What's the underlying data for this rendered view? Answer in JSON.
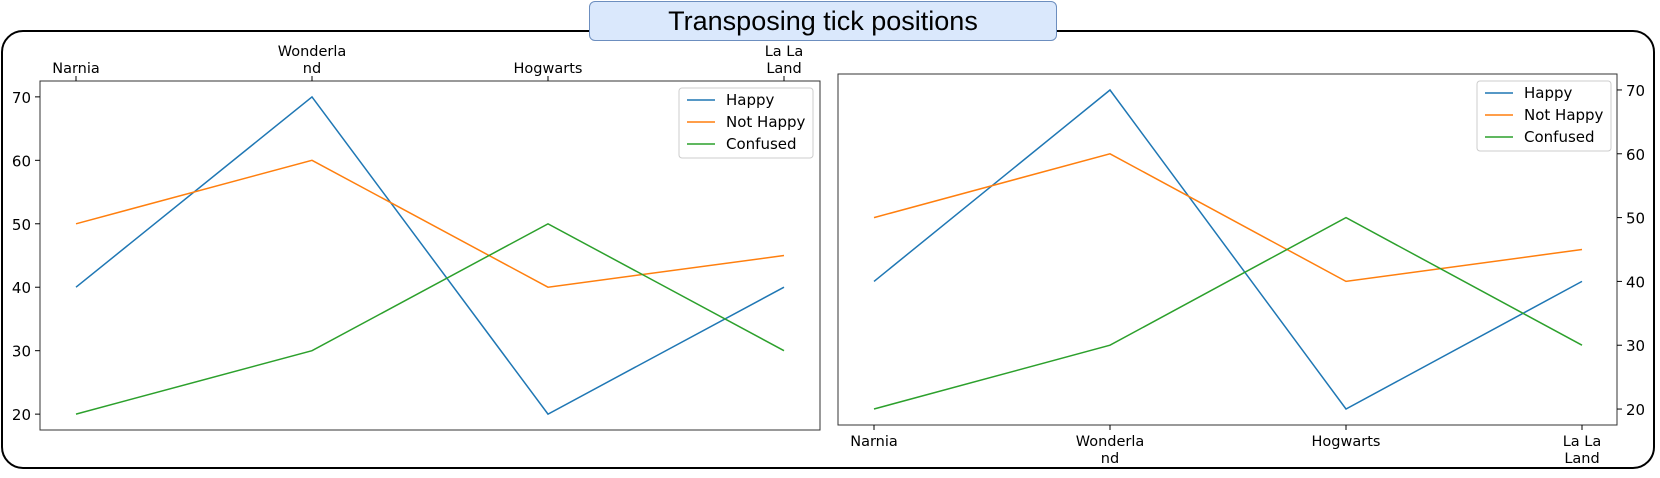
{
  "title": "Transposing tick positions",
  "chart_data": [
    {
      "type": "line",
      "categories": [
        "Narnia",
        "Wonderland",
        "Hogwarts",
        "La La Land"
      ],
      "category_labels": [
        [
          "Narnia"
        ],
        [
          "Wonderla",
          "nd"
        ],
        [
          "Hogwarts"
        ],
        [
          "La La",
          "Land"
        ]
      ],
      "series": [
        {
          "name": "Happy",
          "values": [
            40,
            70,
            20,
            40
          ],
          "color": "#1f77b4"
        },
        {
          "name": "Not Happy",
          "values": [
            50,
            60,
            40,
            45
          ],
          "color": "#ff7f0e"
        },
        {
          "name": "Confused",
          "values": [
            20,
            30,
            50,
            30
          ],
          "color": "#2ca02c"
        }
      ],
      "yticks": [
        20,
        30,
        40,
        50,
        60,
        70
      ],
      "ylim": [
        17.5,
        72.5
      ],
      "xaxis_position": "top",
      "yaxis_position": "left",
      "legend": "upper-right",
      "xlabel": "",
      "ylabel": "",
      "grid": false
    },
    {
      "type": "line",
      "categories": [
        "Narnia",
        "Wonderland",
        "Hogwarts",
        "La La Land"
      ],
      "category_labels": [
        [
          "Narnia"
        ],
        [
          "Wonderla",
          "nd"
        ],
        [
          "Hogwarts"
        ],
        [
          "La La",
          "Land"
        ]
      ],
      "series": [
        {
          "name": "Happy",
          "values": [
            40,
            70,
            20,
            40
          ],
          "color": "#1f77b4"
        },
        {
          "name": "Not Happy",
          "values": [
            50,
            60,
            40,
            45
          ],
          "color": "#ff7f0e"
        },
        {
          "name": "Confused",
          "values": [
            20,
            30,
            50,
            30
          ],
          "color": "#2ca02c"
        }
      ],
      "yticks": [
        20,
        30,
        40,
        50,
        60,
        70
      ],
      "ylim": [
        17.5,
        72.5
      ],
      "xaxis_position": "bottom",
      "yaxis_position": "right",
      "legend": "upper-right",
      "xlabel": "",
      "ylabel": "",
      "grid": false
    }
  ]
}
